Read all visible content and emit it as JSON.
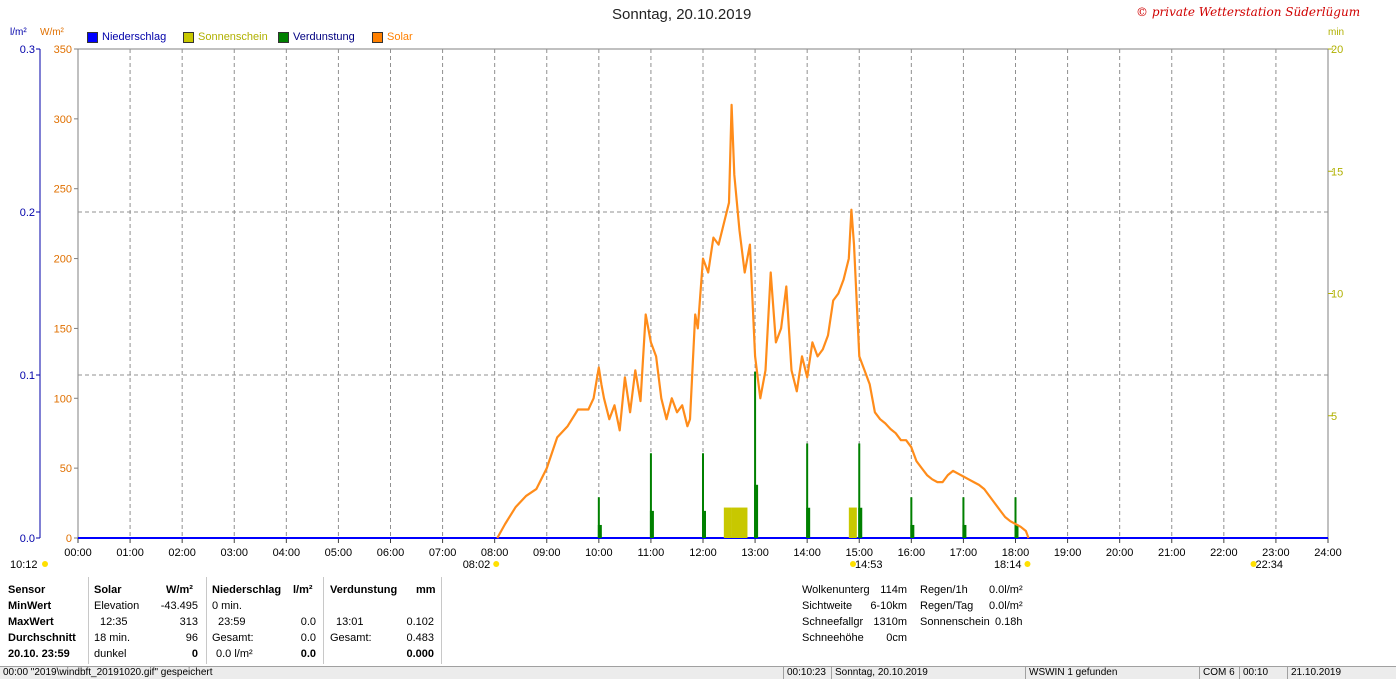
{
  "title": "Sonntag, 20.10.2019",
  "copyright": "© private Wetterstation Süderlügum",
  "units": {
    "left_outer": "l/m²",
    "left_inner": "W/m²",
    "right": "min"
  },
  "legend": [
    {
      "label": "Niederschlag",
      "color": "#0000ff",
      "text_color": "#0000aa"
    },
    {
      "label": "Sonnenschein",
      "color": "#c8c800",
      "text_color": "#b0b000"
    },
    {
      "label": "Verdunstung",
      "color": "#008000",
      "text_color": "#000080"
    },
    {
      "label": "Solar",
      "color": "#ff8000",
      "text_color": "#ff8000"
    }
  ],
  "colors": {
    "solar": "#ff8c1a",
    "evaporation": "#008000",
    "sunshine": "#c8c800",
    "rain": "#0000ff",
    "axis_rain": "#0000aa",
    "axis_solar": "#e07000",
    "axis_sun": "#b0b000"
  },
  "chart_data": {
    "type": "line",
    "x_ticks": [
      "00:00",
      "01:00",
      "02:00",
      "03:00",
      "04:00",
      "05:00",
      "06:00",
      "07:00",
      "08:00",
      "09:00",
      "10:00",
      "11:00",
      "12:00",
      "13:00",
      "14:00",
      "15:00",
      "16:00",
      "17:00",
      "18:00",
      "19:00",
      "20:00",
      "21:00",
      "22:00",
      "23:00",
      "24:00"
    ],
    "y_left_outer": {
      "label": "l/m²",
      "range": [
        0,
        0.3
      ],
      "ticks": [
        "0.0",
        "0.1",
        "0.2",
        "0.3"
      ]
    },
    "y_left_inner": {
      "label": "W/m²",
      "range": [
        0,
        350
      ],
      "ticks": [
        "0",
        "50",
        "100",
        "150",
        "200",
        "250",
        "300",
        "350"
      ]
    },
    "y_right": {
      "label": "min",
      "range": [
        0,
        20
      ],
      "ticks": [
        "5",
        "10",
        "15",
        "20"
      ]
    },
    "grid": true,
    "series": [
      {
        "name": "Solar",
        "axis": "W/m²",
        "x_hours": [
          8.05,
          8.2,
          8.4,
          8.6,
          8.8,
          9.0,
          9.2,
          9.4,
          9.6,
          9.8,
          9.9,
          10.0,
          10.05,
          10.1,
          10.2,
          10.3,
          10.4,
          10.5,
          10.6,
          10.7,
          10.8,
          10.9,
          11.0,
          11.1,
          11.2,
          11.3,
          11.4,
          11.5,
          11.6,
          11.7,
          11.75,
          11.85,
          11.9,
          12.0,
          12.1,
          12.2,
          12.3,
          12.4,
          12.5,
          12.55,
          12.6,
          12.7,
          12.8,
          12.9,
          13.0,
          13.1,
          13.2,
          13.3,
          13.4,
          13.5,
          13.6,
          13.7,
          13.8,
          13.9,
          14.0,
          14.1,
          14.2,
          14.3,
          14.4,
          14.5,
          14.6,
          14.7,
          14.8,
          14.85,
          14.9,
          15.0,
          15.1,
          15.2,
          15.3,
          15.4,
          15.5,
          15.6,
          15.7,
          15.8,
          15.9,
          16.0,
          16.1,
          16.2,
          16.3,
          16.4,
          16.5,
          16.6,
          16.7,
          16.8,
          16.9,
          17.0,
          17.1,
          17.2,
          17.3,
          17.4,
          17.5,
          17.6,
          17.7,
          17.8,
          17.9,
          18.0,
          18.1,
          18.2,
          18.25
        ],
        "values": [
          0,
          10,
          22,
          30,
          35,
          50,
          72,
          80,
          92,
          92,
          100,
          122,
          110,
          100,
          85,
          95,
          77,
          115,
          90,
          120,
          98,
          160,
          140,
          130,
          100,
          85,
          100,
          90,
          95,
          80,
          85,
          160,
          150,
          200,
          190,
          215,
          210,
          225,
          240,
          310,
          260,
          220,
          190,
          210,
          130,
          100,
          120,
          190,
          140,
          150,
          180,
          120,
          105,
          130,
          115,
          140,
          130,
          135,
          145,
          170,
          175,
          185,
          200,
          235,
          210,
          130,
          120,
          110,
          90,
          85,
          82,
          78,
          75,
          70,
          70,
          65,
          55,
          50,
          45,
          42,
          40,
          40,
          45,
          48,
          46,
          44,
          42,
          40,
          38,
          35,
          30,
          25,
          20,
          15,
          12,
          10,
          8,
          5,
          0
        ]
      },
      {
        "name": "Verdunstung",
        "axis": "l/m²",
        "x_hours": [
          10.0,
          11.0,
          12.0,
          13.0,
          14.0,
          15.0,
          16.0,
          17.0,
          18.0
        ],
        "values": [
          0.025,
          0.052,
          0.052,
          0.102,
          0.058,
          0.058,
          0.025,
          0.025,
          0.025
        ]
      },
      {
        "name": "Sonnenschein",
        "axis": "min",
        "x_hours": [
          12.4,
          12.55,
          12.7,
          14.8
        ],
        "values": [
          1,
          1,
          1,
          1
        ]
      }
    ],
    "annotations": [
      {
        "text": "10:12",
        "hour": 0.0
      },
      {
        "text": "08:02",
        "hour": 8.03
      },
      {
        "text": "14:53",
        "hour": 14.88
      },
      {
        "text": "18:14",
        "hour": 18.23
      },
      {
        "text": "22:34",
        "hour": 22.57
      }
    ]
  },
  "stats": {
    "col_sensor": [
      "Sensor",
      "MinWert",
      "MaxWert",
      "Durchschnitt",
      "20.10. 23:59"
    ],
    "solar_header": "Solar",
    "solar_unit": "W/m²",
    "solar_rows": [
      [
        "Elevation",
        "-43.495"
      ],
      [
        "12:35",
        "313"
      ],
      [
        "18 min.",
        "96"
      ],
      [
        "dunkel",
        "0"
      ]
    ],
    "rain_header": "Niederschlag",
    "rain_unit": "l/m²",
    "rain_rows": [
      [
        "0 min.",
        ""
      ],
      [
        "23:59",
        "0.0"
      ],
      [
        "Gesamt:",
        "0.0"
      ],
      [
        "0.0 l/m²",
        "0.0"
      ]
    ],
    "evap_header": "Verdunstung",
    "evap_unit": "mm",
    "evap_rows": [
      [
        "",
        ""
      ],
      [
        "13:01",
        "0.102"
      ],
      [
        "Gesamt:",
        "0.483"
      ],
      [
        "",
        "0.000"
      ]
    ],
    "weather_labels": [
      "Wolkenunterg",
      "Sichtweite",
      "Schneefallgr",
      "Schneehöhe"
    ],
    "weather_values": [
      "114m",
      "6-10km",
      "1310m",
      "0cm"
    ],
    "extra_labels": [
      "Regen/1h",
      "Regen/Tag",
      "Sonnenschein"
    ],
    "extra_values": [
      "0.0l/m²",
      "0.0l/m²",
      "0.18h"
    ]
  },
  "statusbar": [
    "00:00 \"2019\\windbft_20191020.gif\" gespeichert",
    "00:10:23",
    "Sonntag, 20.10.2019",
    "WSWIN 1 gefunden",
    "COM 6",
    "00:10",
    "21.10.2019"
  ]
}
